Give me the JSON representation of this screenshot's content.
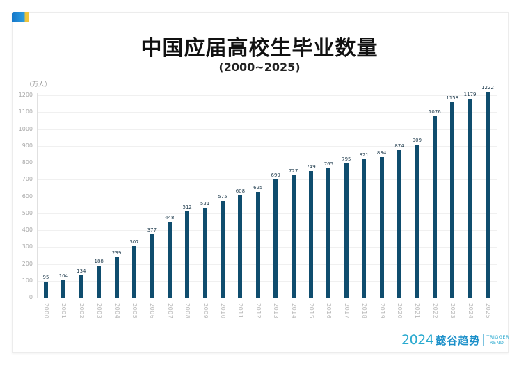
{
  "header": {
    "title": "中国应届高校生毕业数量",
    "subtitle": "(2000~2025)",
    "unit": "（万人）"
  },
  "brand": {
    "year": "2024",
    "name": "懿谷趋势",
    "en_line1": "TRIGGER",
    "en_line2": "TREND"
  },
  "colors": {
    "bar": "#0f4d6e",
    "brand": "#28a9cf",
    "tag_blue": "#1677c8",
    "tag_yellow": "#f0c53a"
  },
  "chart_data": {
    "type": "bar",
    "title": "中国应届高校生毕业数量",
    "subtitle": "(2000~2025)",
    "xlabel": "",
    "ylabel": "（万人）",
    "ylim": [
      0,
      1200
    ],
    "yticks": [
      0,
      100,
      200,
      300,
      400,
      500,
      600,
      700,
      800,
      900,
      1000,
      1100,
      1200
    ],
    "grid": true,
    "legend": "none",
    "categories": [
      "2000",
      "2001",
      "2002",
      "2003",
      "2004",
      "2005",
      "2006",
      "2007",
      "2008",
      "2009",
      "2010",
      "2011",
      "2012",
      "2013",
      "2014",
      "2015",
      "2016",
      "2017",
      "2018",
      "2019",
      "2020",
      "2021",
      "2022",
      "2023",
      "2024",
      "2025"
    ],
    "values": [
      95,
      104,
      134,
      188,
      239,
      307,
      377,
      448,
      512,
      531,
      575,
      608,
      625,
      699,
      727,
      749,
      765,
      795,
      821,
      834,
      874,
      909,
      1076,
      1158,
      1179,
      1222
    ]
  }
}
